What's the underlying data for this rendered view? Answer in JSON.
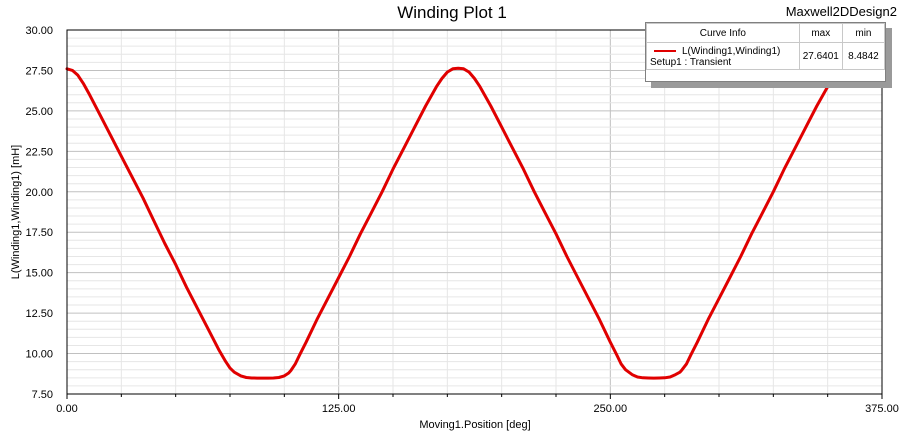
{
  "design_name": "Maxwell2DDesign2",
  "curve_info": {
    "header": "Curve Info",
    "max_header": "max",
    "min_header": "min",
    "curve_name": "L(Winding1,Winding1)",
    "setup": "Setup1 : Transient",
    "max_value": "27.6401",
    "min_value": "8.4842"
  },
  "colors": {
    "curve": "#e00000",
    "grid_major": "#c0c0c0",
    "grid_minor": "#e6e6e6",
    "frame": "#000000"
  },
  "chart_data": {
    "type": "line",
    "title": "Winding Plot 1",
    "xlabel": "Moving1.Position [deg]",
    "ylabel": "L(Winding1,Winding1) [mH]",
    "xlim": [
      0,
      375
    ],
    "ylim": [
      7.5,
      30
    ],
    "xticks": [
      "0.00",
      "125.00",
      "250.00",
      "375.00"
    ],
    "yticks": [
      "7.50",
      "10.00",
      "12.50",
      "15.00",
      "17.50",
      "20.00",
      "22.50",
      "25.00",
      "27.50",
      "30.00"
    ],
    "grid": true,
    "legend": "top-right",
    "series": [
      {
        "name": "L(Winding1,Winding1)",
        "x": [
          0,
          2.5,
          5,
          7.5,
          10,
          15,
          20,
          25,
          30,
          35,
          40,
          45,
          50,
          55,
          60,
          65,
          70,
          73,
          75,
          77,
          80,
          82.5,
          85,
          87.5,
          90,
          92.5,
          95,
          97.5,
          100,
          102,
          103,
          105,
          107,
          110,
          115,
          120,
          125,
          130,
          135,
          140,
          145,
          150,
          155,
          160,
          165,
          170,
          172.5,
          175,
          177.5,
          180,
          182.5,
          185,
          187.5,
          190,
          195,
          200,
          205,
          210,
          215,
          220,
          225,
          230,
          235,
          240,
          245,
          250,
          253,
          255,
          257,
          260,
          262.5,
          265,
          267.5,
          270,
          272.5,
          275,
          277.5,
          280,
          282,
          283,
          285,
          287,
          290,
          295,
          300,
          305,
          310,
          315,
          320,
          325,
          330,
          335,
          340,
          345,
          350,
          352.5,
          354
        ],
        "y": [
          27.6,
          27.5,
          27.2,
          26.7,
          26.1,
          24.8,
          23.5,
          22.2,
          20.9,
          19.6,
          18.2,
          16.8,
          15.5,
          14.1,
          12.8,
          11.5,
          10.2,
          9.5,
          9.1,
          8.85,
          8.62,
          8.52,
          8.49,
          8.485,
          8.484,
          8.485,
          8.49,
          8.52,
          8.62,
          8.8,
          8.95,
          9.35,
          9.9,
          10.7,
          12.1,
          13.4,
          14.7,
          16.0,
          17.4,
          18.7,
          20.0,
          21.4,
          22.7,
          24.0,
          25.3,
          26.5,
          27.0,
          27.4,
          27.6,
          27.64,
          27.6,
          27.4,
          27.0,
          26.5,
          25.3,
          24.0,
          22.7,
          21.4,
          20.0,
          18.7,
          17.4,
          16.0,
          14.7,
          13.4,
          12.1,
          10.7,
          9.9,
          9.35,
          9.0,
          8.7,
          8.55,
          8.5,
          8.486,
          8.484,
          8.486,
          8.5,
          8.55,
          8.7,
          8.85,
          9.0,
          9.35,
          9.9,
          10.7,
          12.1,
          13.4,
          14.7,
          16.0,
          17.4,
          18.7,
          20.0,
          21.4,
          22.7,
          24.0,
          25.3,
          26.5,
          27.2,
          27.64
        ]
      }
    ]
  }
}
